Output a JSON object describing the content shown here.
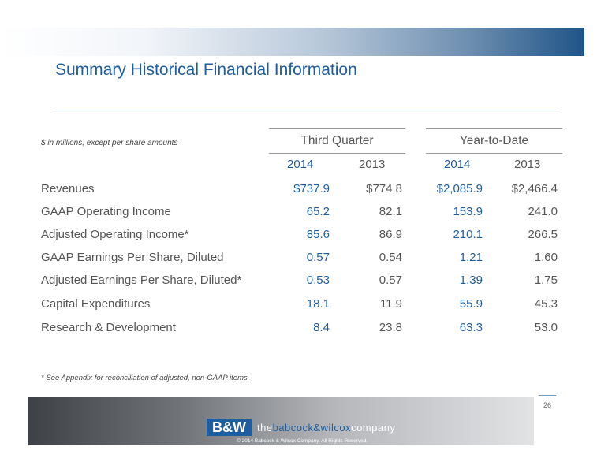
{
  "slide": {
    "title": "Summary Historical Financial Information",
    "units_note": "$ in millions, except per share amounts",
    "footnote": "* See Appendix for reconciliation of adjusted, non-GAAP items.",
    "page_number": "26"
  },
  "table": {
    "groups": [
      "Third Quarter",
      "Year-to-Date"
    ],
    "years": [
      "2014",
      "2013",
      "2014",
      "2013"
    ],
    "rows": [
      {
        "label": "Revenues",
        "values": [
          "$737.9",
          "$774.8",
          "$2,085.9",
          "$2,466.4"
        ]
      },
      {
        "label": "GAAP Operating Income",
        "values": [
          "65.2",
          "82.1",
          "153.9",
          "241.0"
        ]
      },
      {
        "label": "Adjusted Operating Income*",
        "values": [
          "85.6",
          "86.9",
          "210.1",
          "266.5"
        ]
      },
      {
        "label": "GAAP Earnings Per Share, Diluted",
        "values": [
          "0.57",
          "0.54",
          "1.21",
          "1.60"
        ]
      },
      {
        "label": "Adjusted Earnings Per Share, Diluted*",
        "values": [
          "0.53",
          "0.57",
          "1.39",
          "1.75"
        ]
      },
      {
        "label": "Capital Expenditures",
        "values": [
          "18.1",
          "11.9",
          "55.9",
          "45.3"
        ]
      },
      {
        "label": "Research & Development",
        "values": [
          "8.4",
          "23.8",
          "63.3",
          "53.0"
        ]
      }
    ]
  },
  "footer": {
    "logo_mark": "B&W",
    "logo_prefix": "the",
    "logo_middle": "babcock&wilcox",
    "logo_suffix": "company",
    "copyright": "© 2014 Babcock & Wilcox Company. All Rights Reserved."
  },
  "colors": {
    "accent_blue": "#1f5e9e",
    "body_grey": "#555555"
  }
}
